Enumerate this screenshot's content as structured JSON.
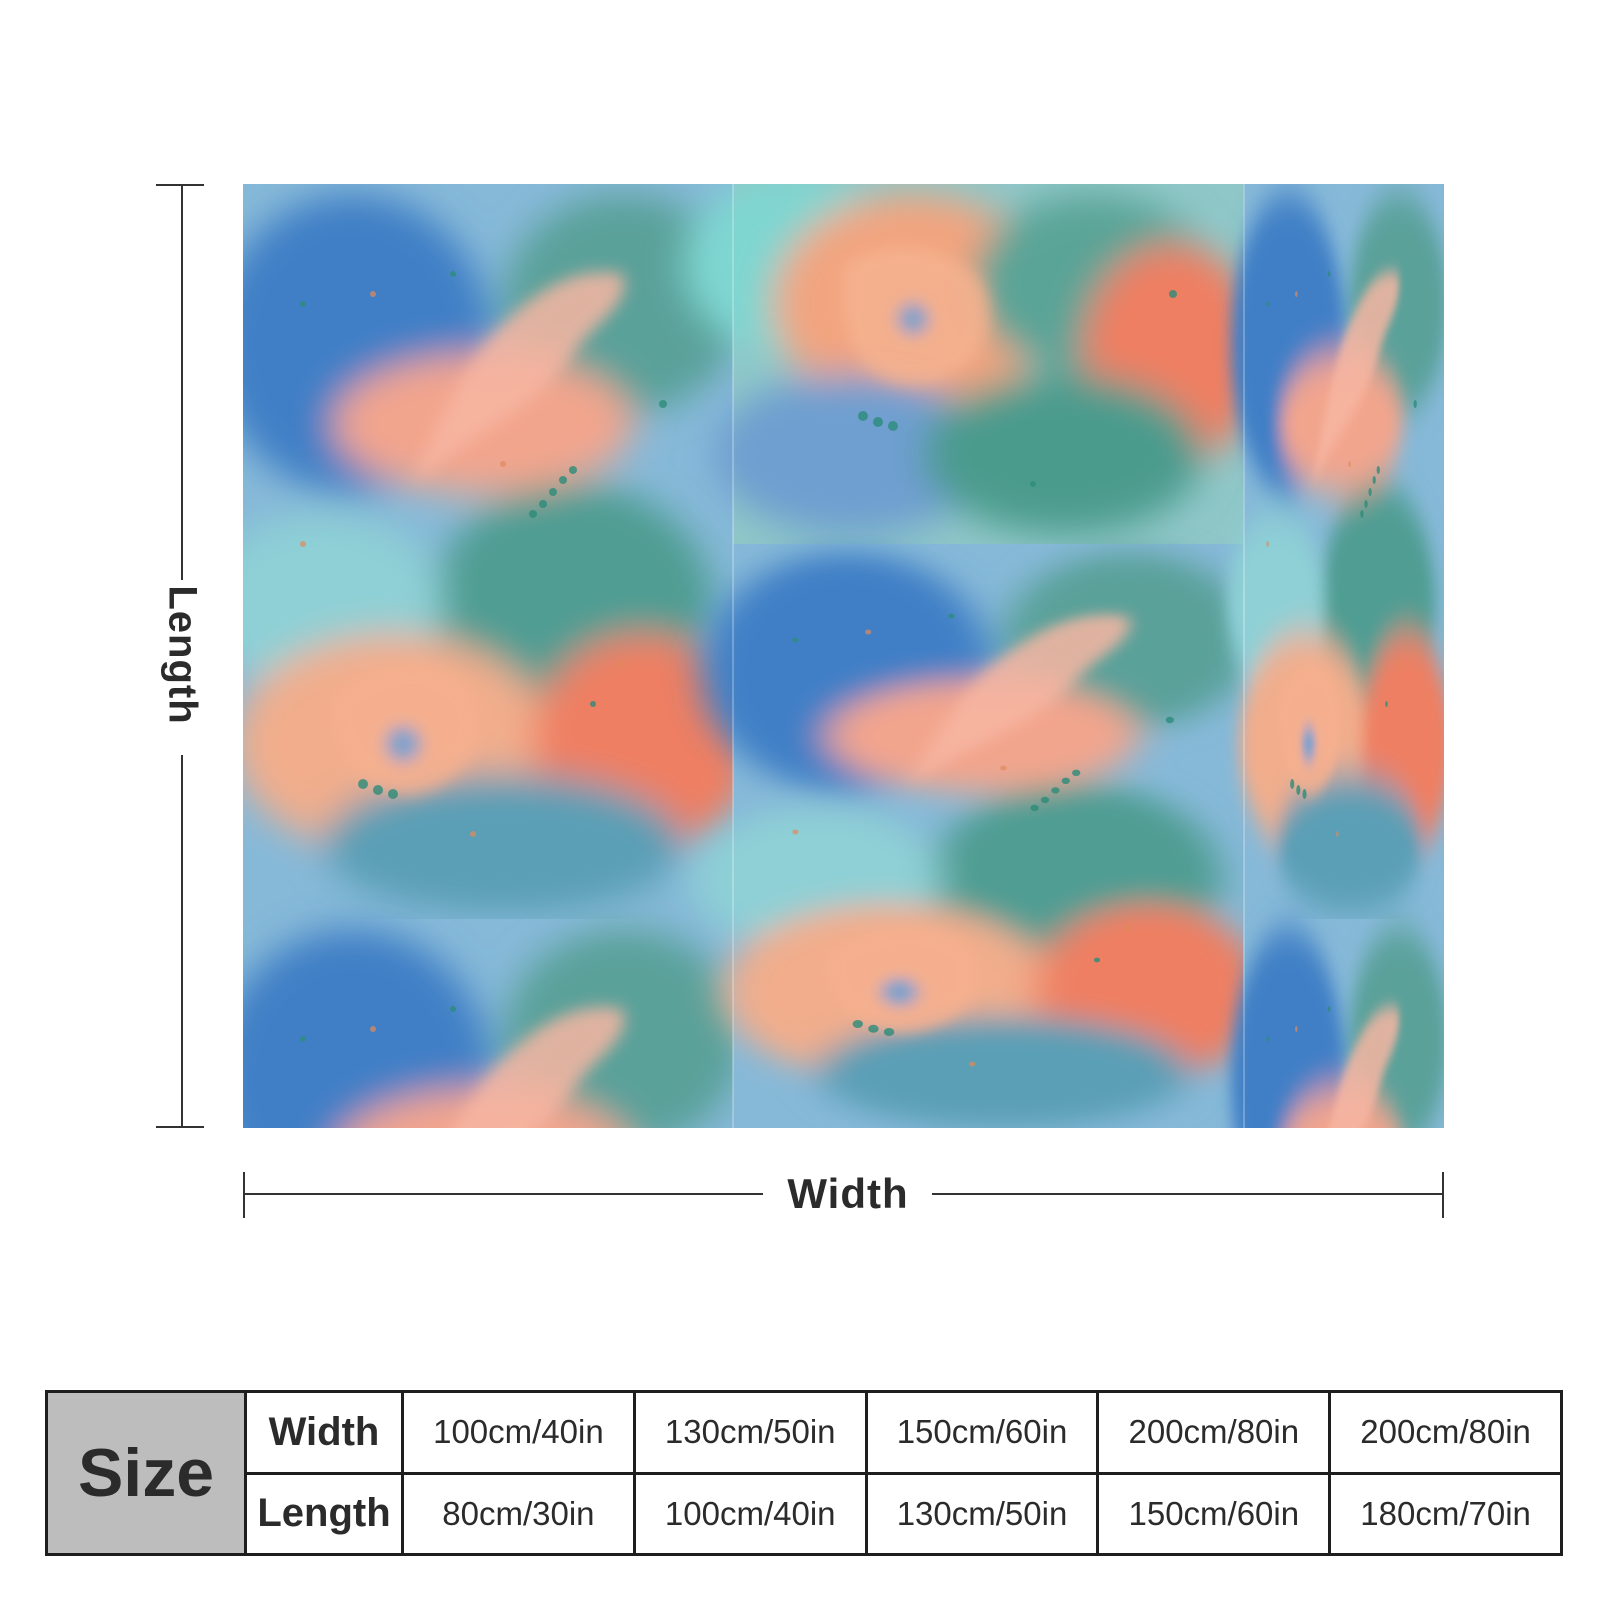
{
  "dimensions": {
    "length_label": "Length",
    "width_label": "Width"
  },
  "size_table": {
    "header": "Size",
    "rows": [
      {
        "label": "Width",
        "values": [
          "100cm/40in",
          "130cm/50in",
          "150cm/60in",
          "200cm/80in",
          "200cm/80in"
        ]
      },
      {
        "label": "Length",
        "values": [
          "80cm/30in",
          "100cm/40in",
          "130cm/50in",
          "150cm/60in",
          "180cm/70in"
        ]
      }
    ]
  },
  "colors": {
    "watercolor_blue": "#5a9ad6",
    "watercolor_teal": "#4fa39a",
    "watercolor_coral": "#ef8a6e",
    "watercolor_peach": "#f2b89a",
    "watercolor_aqua": "#7fd3d4",
    "size_header_bg": "#bdbdbd",
    "line_color": "#333333"
  }
}
